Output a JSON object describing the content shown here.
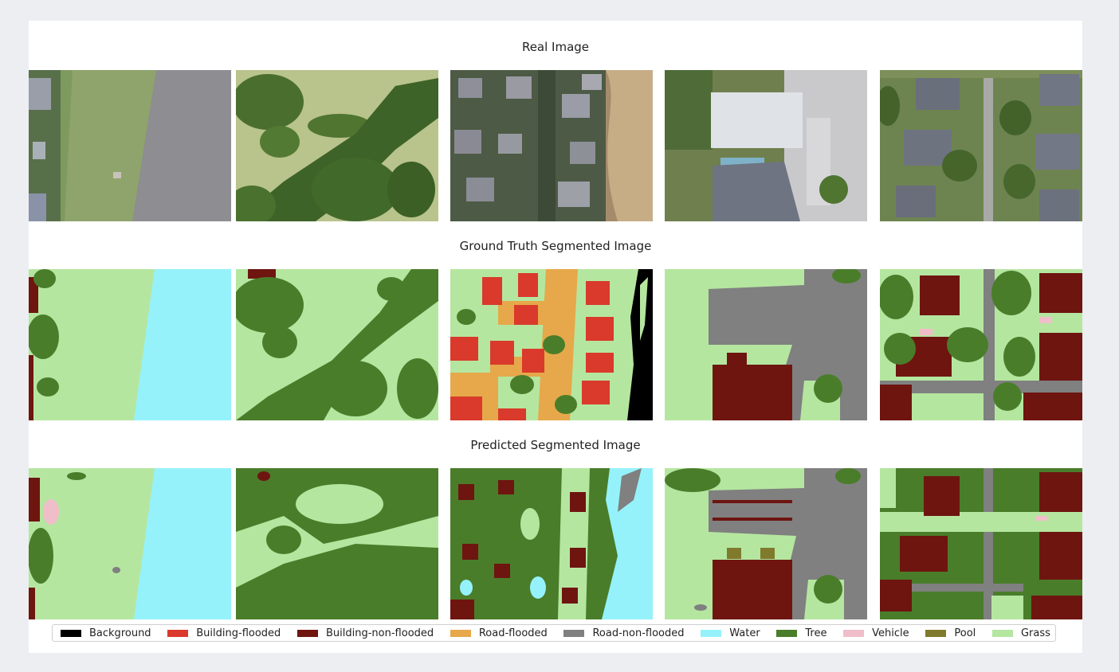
{
  "rows": {
    "real": {
      "title": "Real Image"
    },
    "ground_truth": {
      "title": "Ground Truth Segmented Image"
    },
    "predicted": {
      "title": "Predicted Segmented Image"
    }
  },
  "legend": [
    {
      "label": "Background",
      "color": "#000000"
    },
    {
      "label": "Building-flooded",
      "color": "#d93a2b"
    },
    {
      "label": "Building-non-flooded",
      "color": "#6e1510"
    },
    {
      "label": "Road-flooded",
      "color": "#e6a84a"
    },
    {
      "label": "Road-non-flooded",
      "color": "#808080"
    },
    {
      "label": "Water",
      "color": "#95f2fa"
    },
    {
      "label": "Tree",
      "color": "#4a7d2a"
    },
    {
      "label": "Vehicle",
      "color": "#f0bec8"
    },
    {
      "label": "Pool",
      "color": "#807a2c"
    },
    {
      "label": "Grass",
      "color": "#b5e6a0"
    }
  ]
}
